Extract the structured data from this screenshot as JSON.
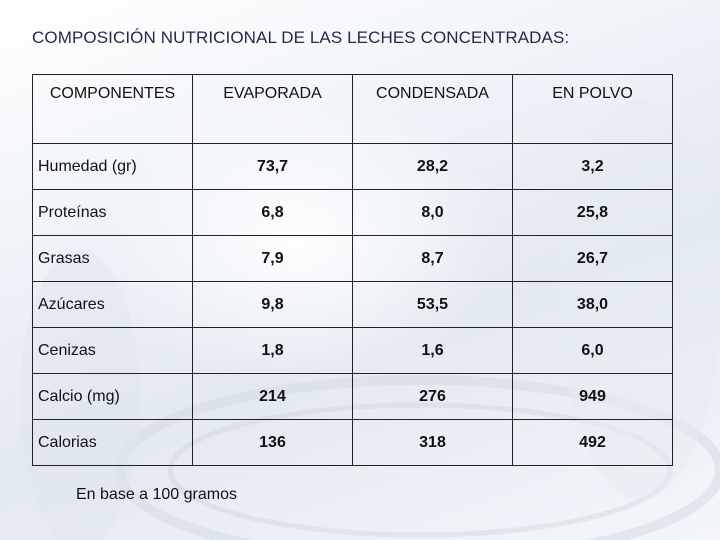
{
  "title": "COMPOSICIÓN NUTRICIONAL DE LAS LECHES CONCENTRADAS:",
  "table": {
    "headers": [
      "COMPONENTES",
      "EVAPORADA",
      "CONDENSADA",
      "EN POLVO"
    ],
    "rows": [
      [
        "Humedad (gr)",
        "73,7",
        "28,2",
        "3,2"
      ],
      [
        "Proteínas",
        "6,8",
        "8,0",
        "25,8"
      ],
      [
        "Grasas",
        "7,9",
        "8,7",
        "26,7"
      ],
      [
        "Azúcares",
        "9,8",
        "53,5",
        "38,0"
      ],
      [
        "Cenizas",
        "1,8",
        "1,6",
        "6,0"
      ],
      [
        "Calcio (mg)",
        "214",
        "276",
        "949"
      ],
      [
        "Calorias",
        "136",
        "318",
        "492"
      ]
    ]
  },
  "footnote": "En base a 100 gramos",
  "colors": {
    "text": "#111111",
    "title": "#1f2a44",
    "border": "#222222"
  }
}
